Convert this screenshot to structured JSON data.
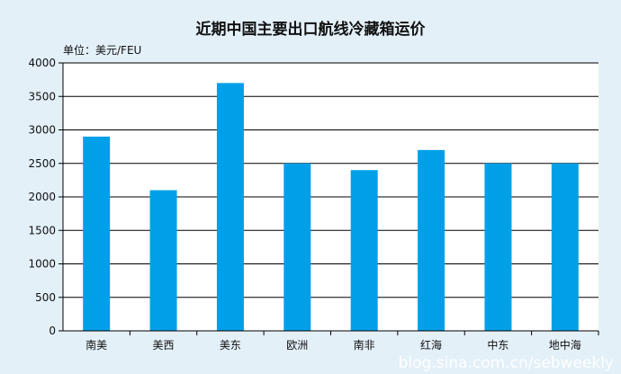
{
  "chart_data": {
    "type": "bar",
    "title": "近期中国主要出口航线冷藏箱运价",
    "unit_label": "单位：美元/FEU",
    "categories": [
      "南美",
      "美西",
      "美东",
      "欧洲",
      "南非",
      "红海",
      "中东",
      "地中海"
    ],
    "values": [
      2900,
      2100,
      3700,
      2500,
      2400,
      2700,
      2500,
      2500
    ],
    "ylim": [
      0,
      4000
    ],
    "yticks": [
      0,
      500,
      1000,
      1500,
      2000,
      2500,
      3000,
      3500,
      4000
    ],
    "grid": true,
    "bar_color": "#00a0e9"
  },
  "watermark": "blog.sina.com.cn/sebweekly"
}
